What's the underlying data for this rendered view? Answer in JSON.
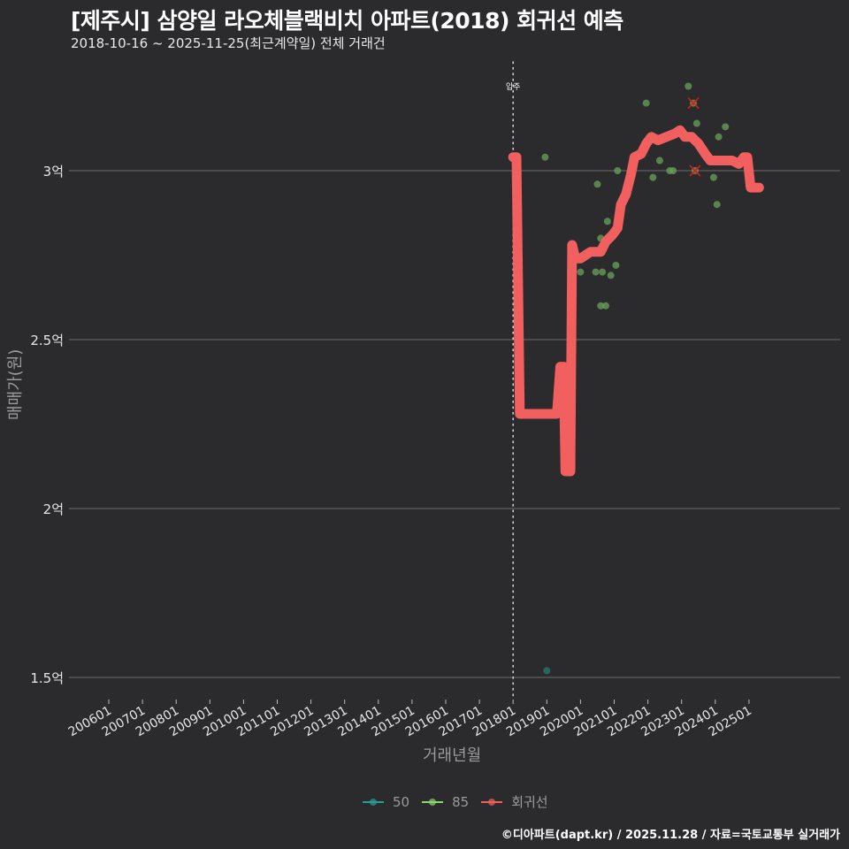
{
  "header": {
    "title": "[제주시] 삼양일 라오체블랙비치 아파트(2018) 회귀선 예측",
    "subtitle": "2018-10-16 ~ 2025-11-25(최근계약일) 전체 거래건"
  },
  "axes": {
    "ylabel": "매매가(원)",
    "xlabel": "거래년월"
  },
  "legend": [
    {
      "label": "50",
      "color": "#2a9d8f"
    },
    {
      "label": "85",
      "color": "#8fd46e"
    },
    {
      "label": "회귀선",
      "color": "#f25f5f"
    }
  ],
  "caption": "©디아파트(dapt.kr) / 2025.11.28 / 자료=국토교통부 실거래가",
  "annotation": {
    "label": "입주",
    "x": "201801"
  },
  "colors": {
    "background": "#2b2b2d",
    "grid": "#6b6b6b",
    "regression": "#f25f5f",
    "size85": "#6aa35a",
    "size50": "#2a7a6a",
    "cancelled": "#d81b1b"
  },
  "chart_data": {
    "type": "line+scatter",
    "title": "[제주시] 삼양일 라오체블랙비치 아파트(2018) 회귀선 예측",
    "subtitle": "2018-10-16 ~ 2025-11-25(최근계약일) 전체 거래건",
    "xlabel": "거래년월",
    "ylabel": "매매가(원)",
    "x_ticks": [
      "200601",
      "200701",
      "200801",
      "200901",
      "201001",
      "201101",
      "201201",
      "201301",
      "201401",
      "201501",
      "201601",
      "201701",
      "201801",
      "201901",
      "202001",
      "202101",
      "202201",
      "202301",
      "202401",
      "202501"
    ],
    "y_ticks": [
      {
        "value": 1.5,
        "label": "1.5억"
      },
      {
        "value": 2,
        "label": "2억"
      },
      {
        "value": 2.5,
        "label": "2.5억"
      },
      {
        "value": 3,
        "label": "3억"
      }
    ],
    "ylim": [
      1.43,
      3.3
    ],
    "units": "억원",
    "grid": "horizontal",
    "legend_position": "bottom",
    "vline": {
      "x": 2018.0,
      "label": "입주",
      "style": "dotted"
    },
    "series": [
      {
        "name": "회귀선",
        "type": "line",
        "points": [
          [
            2018.0,
            3.04
          ],
          [
            2018.1,
            3.04
          ],
          [
            2018.2,
            2.28
          ],
          [
            2019.3,
            2.28
          ],
          [
            2019.4,
            2.42
          ],
          [
            2019.5,
            2.42
          ],
          [
            2019.55,
            2.11
          ],
          [
            2019.7,
            2.11
          ],
          [
            2019.75,
            2.78
          ],
          [
            2019.85,
            2.74
          ],
          [
            2020.0,
            2.74
          ],
          [
            2020.15,
            2.75
          ],
          [
            2020.3,
            2.76
          ],
          [
            2020.6,
            2.76
          ],
          [
            2020.75,
            2.79
          ],
          [
            2020.95,
            2.81
          ],
          [
            2021.1,
            2.83
          ],
          [
            2021.2,
            2.9
          ],
          [
            2021.35,
            2.93
          ],
          [
            2021.5,
            2.99
          ],
          [
            2021.6,
            3.04
          ],
          [
            2021.8,
            3.05
          ],
          [
            2021.95,
            3.08
          ],
          [
            2022.1,
            3.1
          ],
          [
            2022.3,
            3.09
          ],
          [
            2022.55,
            3.1
          ],
          [
            2022.8,
            3.11
          ],
          [
            2022.95,
            3.12
          ],
          [
            2023.1,
            3.1
          ],
          [
            2023.3,
            3.1
          ],
          [
            2023.5,
            3.08
          ],
          [
            2023.7,
            3.05
          ],
          [
            2023.85,
            3.03
          ],
          [
            2024.5,
            3.03
          ],
          [
            2024.7,
            3.02
          ],
          [
            2024.85,
            3.04
          ],
          [
            2024.95,
            3.04
          ],
          [
            2025.05,
            2.95
          ],
          [
            2025.3,
            2.95
          ]
        ]
      },
      {
        "name": "85",
        "type": "scatter",
        "points": [
          [
            2018.95,
            3.04
          ],
          [
            2020.5,
            2.96
          ],
          [
            2020.0,
            2.7
          ],
          [
            2020.45,
            2.7
          ],
          [
            2020.6,
            2.6
          ],
          [
            2020.75,
            2.6
          ],
          [
            2020.6,
            2.8
          ],
          [
            2020.65,
            2.7
          ],
          [
            2020.8,
            2.85
          ],
          [
            2020.9,
            2.69
          ],
          [
            2021.05,
            2.72
          ],
          [
            2021.1,
            3.0
          ],
          [
            2021.95,
            3.2
          ],
          [
            2022.15,
            2.98
          ],
          [
            2022.35,
            3.03
          ],
          [
            2022.65,
            3.0
          ],
          [
            2022.75,
            3.0
          ],
          [
            2023.2,
            3.25
          ],
          [
            2023.35,
            3.2
          ],
          [
            2023.45,
            3.14
          ],
          [
            2023.4,
            3.0
          ],
          [
            2023.95,
            2.98
          ],
          [
            2024.1,
            3.1
          ],
          [
            2024.05,
            2.9
          ],
          [
            2024.3,
            3.13
          ]
        ]
      },
      {
        "name": "50",
        "type": "scatter",
        "points": [
          [
            2019.0,
            1.52
          ]
        ]
      },
      {
        "name": "취소거래",
        "type": "scatter-x",
        "points": [
          [
            2023.35,
            3.2
          ],
          [
            2023.4,
            3.0
          ]
        ]
      }
    ]
  }
}
